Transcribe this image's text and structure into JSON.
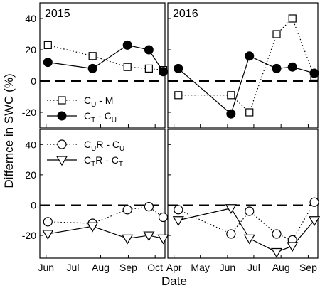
{
  "chart_data": [
    {
      "type": "line",
      "panel": "2015-top",
      "title": "2015",
      "ylim": [
        -30,
        50
      ],
      "yticks": [
        -20,
        0,
        20,
        40
      ],
      "xlim": [
        "2015-05-25",
        "2015-10-12"
      ],
      "series": [
        {
          "name_parts": [
            "C",
            "U",
            " - M"
          ],
          "marker": "square",
          "line": "dotted",
          "x": [
            "2015-06-03",
            "2015-07-23",
            "2015-08-31",
            "2015-09-24",
            "2015-10-10"
          ],
          "y": [
            23,
            16,
            9,
            8,
            7
          ]
        },
        {
          "name_parts": [
            "C",
            "T",
            " - C",
            "U"
          ],
          "marker": "circle-filled",
          "line": "solid",
          "x": [
            "2015-06-03",
            "2015-07-23",
            "2015-08-31",
            "2015-09-24",
            "2015-10-10"
          ],
          "y": [
            12,
            8,
            23,
            20,
            6
          ]
        }
      ]
    },
    {
      "type": "line",
      "panel": "2016-top",
      "title": "2016",
      "ylim": [
        -30,
        50
      ],
      "yticks": [
        -20,
        0,
        20,
        40
      ],
      "xlim": [
        "2016-03-25",
        "2016-09-12"
      ],
      "series": [
        {
          "name_parts": [
            "C",
            "U",
            " - M"
          ],
          "marker": "square",
          "line": "dotted",
          "x": [
            "2016-04-06",
            "2016-06-05",
            "2016-06-26",
            "2016-07-27",
            "2016-08-14",
            "2016-09-08"
          ],
          "y": [
            -9,
            -9,
            -20,
            30,
            40,
            3
          ]
        },
        {
          "name_parts": [
            "C",
            "T",
            " - C",
            "U"
          ],
          "marker": "circle-filled",
          "line": "solid",
          "x": [
            "2016-04-06",
            "2016-06-05",
            "2016-06-26",
            "2016-07-27",
            "2016-08-14",
            "2016-09-08"
          ],
          "y": [
            8,
            -21,
            16,
            8,
            9,
            5
          ]
        }
      ]
    },
    {
      "type": "line",
      "panel": "2015-bottom",
      "ylim": [
        -35,
        50
      ],
      "yticks": [
        -20,
        0,
        20,
        40
      ],
      "xlabel": "",
      "xticks": [
        "Jun",
        "Jul",
        "Aug",
        "Sep",
        "Oct"
      ],
      "xlim": [
        "2015-05-25",
        "2015-10-12"
      ],
      "series": [
        {
          "name_parts": [
            "C",
            "U",
            "R - C",
            "U"
          ],
          "marker": "circle-open",
          "line": "dotted",
          "x": [
            "2015-06-03",
            "2015-07-23",
            "2015-08-31",
            "2015-09-24",
            "2015-10-10"
          ],
          "y": [
            -11,
            -12,
            -3,
            -1,
            -8
          ]
        },
        {
          "name_parts": [
            "C",
            "T",
            "R - C",
            "T"
          ],
          "marker": "triangle-down",
          "line": "solid",
          "x": [
            "2015-06-03",
            "2015-07-23",
            "2015-08-31",
            "2015-09-24",
            "2015-10-10"
          ],
          "y": [
            -19,
            -14,
            -22,
            -20,
            -22
          ]
        }
      ]
    },
    {
      "type": "line",
      "panel": "2016-bottom",
      "ylim": [
        -35,
        50
      ],
      "yticks": [
        -20,
        0,
        20,
        40
      ],
      "xticks": [
        "Apr",
        "May",
        "Jun",
        "Jul",
        "Aug",
        "Sep"
      ],
      "xlim": [
        "2016-03-25",
        "2016-09-12"
      ],
      "series": [
        {
          "name_parts": [
            "C",
            "U",
            "R - C",
            "U"
          ],
          "marker": "circle-open",
          "line": "dotted",
          "x": [
            "2016-04-06",
            "2016-06-05",
            "2016-06-26",
            "2016-07-27",
            "2016-08-14",
            "2016-09-08"
          ],
          "y": [
            -3,
            -19,
            -4,
            -19,
            -23,
            2
          ]
        },
        {
          "name_parts": [
            "C",
            "T",
            "R - C",
            "T"
          ],
          "marker": "triangle-down",
          "line": "solid",
          "x": [
            "2016-04-06",
            "2016-06-05",
            "2016-06-26",
            "2016-07-27",
            "2016-08-14",
            "2016-09-08"
          ],
          "y": [
            -10,
            -2,
            -22,
            -31,
            -27,
            -10
          ]
        }
      ]
    }
  ],
  "ylabel": "Differnce in SWC (%)",
  "xlabel": "Date",
  "ytick_labels": [
    "-20",
    "0",
    "20",
    "40"
  ],
  "month_ticks": {
    "2015": [
      {
        "label": "Jun",
        "date": "2015-06-01"
      },
      {
        "label": "Jul",
        "date": "2015-07-01"
      },
      {
        "label": "Aug",
        "date": "2015-08-01"
      },
      {
        "label": "Sep",
        "date": "2015-09-01"
      },
      {
        "label": "Oct",
        "date": "2015-10-01"
      }
    ],
    "2016": [
      {
        "label": "Apr",
        "date": "2016-04-01"
      },
      {
        "label": "May",
        "date": "2016-05-01"
      },
      {
        "label": "Jun",
        "date": "2016-06-01"
      },
      {
        "label": "Jul",
        "date": "2016-07-01"
      },
      {
        "label": "Aug",
        "date": "2016-08-01"
      },
      {
        "label": "Sep",
        "date": "2016-09-01"
      }
    ]
  },
  "reference_line": {
    "y": 0,
    "style": "dashed"
  },
  "legend": {
    "top_panel": "2015-top",
    "bottom_panel": "2015-bottom"
  }
}
